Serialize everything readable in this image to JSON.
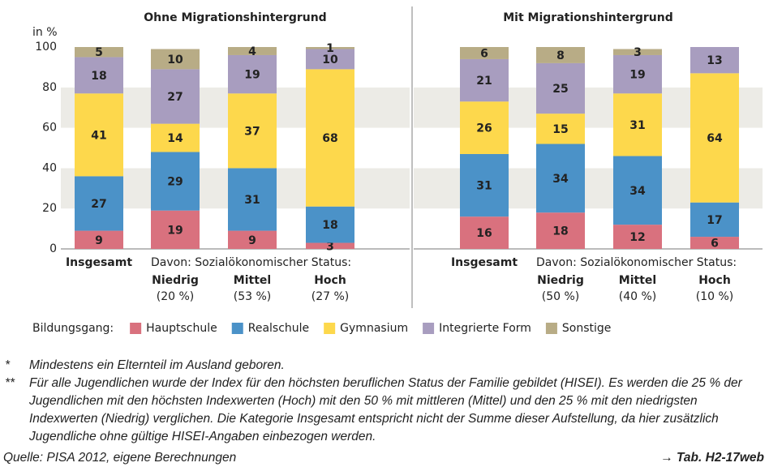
{
  "chart_data": [
    {
      "type": "bar",
      "stacked": true,
      "title": "Ohne Migrationshintergrund",
      "ylabel": "in %",
      "tick_labels": true,
      "categories": [
        "Insgesamt",
        "Niedrig",
        "Mittel",
        "Hoch"
      ],
      "category_notes": [
        null,
        "(20 %)",
        "(53 %)",
        "(27 %)"
      ],
      "group_label": "Davon: Sozialökonomischer Status:",
      "ylim": [
        0,
        100
      ],
      "yticks": [
        0,
        20,
        40,
        60,
        80,
        100
      ],
      "series": [
        {
          "name": "Hauptschule",
          "color": "#d9717e",
          "values": [
            9,
            19,
            9,
            3
          ]
        },
        {
          "name": "Realschule",
          "color": "#4b92c8",
          "values": [
            27,
            29,
            31,
            18
          ]
        },
        {
          "name": "Gymnasium",
          "color": "#fdd84c",
          "values": [
            41,
            14,
            37,
            68
          ]
        },
        {
          "name": "Integrierte Form",
          "color": "#a89dbf",
          "values": [
            18,
            27,
            19,
            10
          ]
        },
        {
          "name": "Sonstige",
          "color": "#b8ac86",
          "values": [
            5,
            10,
            4,
            1
          ]
        }
      ]
    },
    {
      "type": "bar",
      "stacked": true,
      "title": "Mit Migrationshintergrund",
      "tick_labels": false,
      "categories": [
        "Insgesamt",
        "Niedrig",
        "Mittel",
        "Hoch"
      ],
      "category_notes": [
        null,
        "(50 %)",
        "(40 %)",
        "(10 %)"
      ],
      "group_label": "Davon: Sozialökonomischer Status:",
      "ylim": [
        0,
        100
      ],
      "yticks": [
        0,
        20,
        40,
        60,
        80,
        100
      ],
      "series": [
        {
          "color": "#d9717e",
          "values": [
            16,
            18,
            12,
            6
          ]
        },
        {
          "color": "#4b92c8",
          "values": [
            31,
            34,
            34,
            17
          ]
        },
        {
          "color": "#fdd84c",
          "values": [
            26,
            15,
            31,
            64
          ]
        },
        {
          "color": "#a89dbf",
          "values": [
            21,
            25,
            19,
            13
          ]
        },
        {
          "color": "#b8ac86",
          "values": [
            6,
            8,
            3,
            null
          ]
        }
      ]
    }
  ],
  "legend_title": "Bildungsgang:",
  "notes": [
    {
      "marker": "*",
      "text": "Mindestens ein Elternteil im Ausland geboren."
    },
    {
      "marker": "**",
      "text": "Für alle Jugendlichen wurde der Index für den höchsten beruflichen Status der Familie gebildet (HISEI). Es werden die 25 % der Jugendlichen mit den höchsten Indexwerten (Hoch) mit den 50 % mit mittleren (Mittel) und den 25 % mit den niedrigsten Indexwerten (Niedrig) verglichen. Die Kategorie Insgesamt entspricht nicht der Summe dieser Aufstellung, da hier zusätzlich Jugendliche ohne gültige HISEI-Angaben einbezogen werden."
    }
  ],
  "source": "Quelle: PISA 2012, eigene Berechnungen",
  "reference": "→ Tab. H2-17web"
}
